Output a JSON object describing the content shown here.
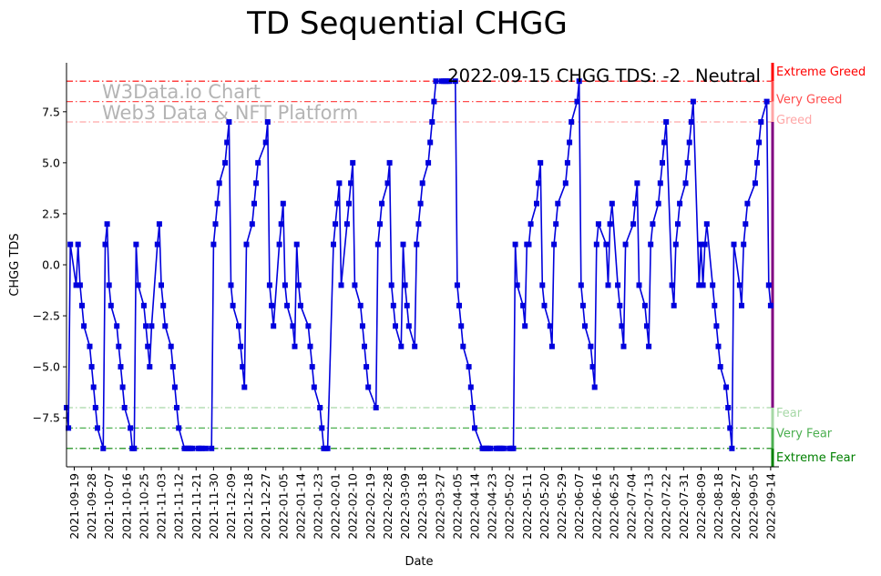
{
  "chart_data": {
    "type": "line",
    "title": "TD Sequential CHGG",
    "xlabel": "Date",
    "ylabel": "CHGG TDS",
    "ylim": [
      -9.9,
      9.9
    ],
    "yticks": [
      -7.5,
      -5.0,
      -2.5,
      0.0,
      2.5,
      5.0,
      7.5
    ],
    "ytick_labels": [
      "−7.5",
      "−5.0",
      "−2.5",
      "0.0",
      "2.5",
      "5.0",
      "7.5"
    ],
    "x_start": "2021-09-15",
    "x_end": "2022-09-15",
    "xtick_labels": [
      "2021-09-19",
      "2021-09-28",
      "2021-10-07",
      "2021-10-16",
      "2021-10-25",
      "2021-11-03",
      "2021-11-12",
      "2021-11-21",
      "2021-11-30",
      "2021-12-09",
      "2021-12-18",
      "2021-12-27",
      "2022-01-05",
      "2022-01-14",
      "2022-01-23",
      "2022-02-01",
      "2022-02-10",
      "2022-02-19",
      "2022-02-28",
      "2022-03-09",
      "2022-03-18",
      "2022-03-27",
      "2022-04-05",
      "2022-04-14",
      "2022-04-23",
      "2022-05-02",
      "2022-05-11",
      "2022-05-20",
      "2022-05-29",
      "2022-06-07",
      "2022-06-16",
      "2022-06-25",
      "2022-07-04",
      "2022-07-13",
      "2022-07-22",
      "2022-07-31",
      "2022-08-09",
      "2022-08-18",
      "2022-08-27",
      "2022-09-05",
      "2022-09-14"
    ],
    "series": [
      {
        "name": "CHGG TDS",
        "color": "#0000dd",
        "values": [
          [
            "2021-09-15",
            -7
          ],
          [
            "2021-09-16",
            -8
          ],
          [
            "2021-09-17",
            1
          ],
          [
            "2021-09-20",
            -1
          ],
          [
            "2021-09-21",
            1
          ],
          [
            "2021-09-22",
            -1
          ],
          [
            "2021-09-23",
            -2
          ],
          [
            "2021-09-24",
            -3
          ],
          [
            "2021-09-27",
            -4
          ],
          [
            "2021-09-28",
            -5
          ],
          [
            "2021-09-29",
            -6
          ],
          [
            "2021-09-30",
            -7
          ],
          [
            "2021-10-01",
            -8
          ],
          [
            "2021-10-04",
            -9
          ],
          [
            "2021-10-05",
            1
          ],
          [
            "2021-10-06",
            2
          ],
          [
            "2021-10-07",
            -1
          ],
          [
            "2021-10-08",
            -2
          ],
          [
            "2021-10-11",
            -3
          ],
          [
            "2021-10-12",
            -4
          ],
          [
            "2021-10-13",
            -5
          ],
          [
            "2021-10-14",
            -6
          ],
          [
            "2021-10-15",
            -7
          ],
          [
            "2021-10-18",
            -8
          ],
          [
            "2021-10-19",
            -9
          ],
          [
            "2021-10-20",
            -9
          ],
          [
            "2021-10-21",
            1
          ],
          [
            "2021-10-22",
            -1
          ],
          [
            "2021-10-25",
            -2
          ],
          [
            "2021-10-26",
            -3
          ],
          [
            "2021-10-27",
            -4
          ],
          [
            "2021-10-28",
            -5
          ],
          [
            "2021-10-29",
            -3
          ],
          [
            "2021-11-01",
            1
          ],
          [
            "2021-11-02",
            2
          ],
          [
            "2021-11-03",
            -1
          ],
          [
            "2021-11-04",
            -2
          ],
          [
            "2021-11-05",
            -3
          ],
          [
            "2021-11-08",
            -4
          ],
          [
            "2021-11-09",
            -5
          ],
          [
            "2021-11-10",
            -6
          ],
          [
            "2021-11-11",
            -7
          ],
          [
            "2021-11-12",
            -8
          ],
          [
            "2021-11-15",
            -9
          ],
          [
            "2021-11-16",
            -9
          ],
          [
            "2021-11-17",
            -9
          ],
          [
            "2021-11-18",
            -9
          ],
          [
            "2021-11-19",
            -9
          ],
          [
            "2021-11-22",
            -9
          ],
          [
            "2021-11-23",
            -9
          ],
          [
            "2021-11-24",
            -9
          ],
          [
            "2021-11-26",
            -9
          ],
          [
            "2021-11-29",
            -9
          ],
          [
            "2021-11-30",
            1
          ],
          [
            "2021-12-01",
            2
          ],
          [
            "2021-12-02",
            3
          ],
          [
            "2021-12-03",
            4
          ],
          [
            "2021-12-06",
            5
          ],
          [
            "2021-12-07",
            6
          ],
          [
            "2021-12-08",
            7
          ],
          [
            "2021-12-09",
            -1
          ],
          [
            "2021-12-10",
            -2
          ],
          [
            "2021-12-13",
            -3
          ],
          [
            "2021-12-14",
            -4
          ],
          [
            "2021-12-15",
            -5
          ],
          [
            "2021-12-16",
            -6
          ],
          [
            "2021-12-17",
            1
          ],
          [
            "2021-12-20",
            2
          ],
          [
            "2021-12-21",
            3
          ],
          [
            "2021-12-22",
            4
          ],
          [
            "2021-12-23",
            5
          ],
          [
            "2021-12-27",
            6
          ],
          [
            "2021-12-28",
            7
          ],
          [
            "2021-12-29",
            -1
          ],
          [
            "2021-12-30",
            -2
          ],
          [
            "2021-12-31",
            -3
          ],
          [
            "2022-01-03",
            1
          ],
          [
            "2022-01-04",
            2
          ],
          [
            "2022-01-05",
            3
          ],
          [
            "2022-01-06",
            -1
          ],
          [
            "2022-01-07",
            -2
          ],
          [
            "2022-01-10",
            -3
          ],
          [
            "2022-01-11",
            -4
          ],
          [
            "2022-01-12",
            1
          ],
          [
            "2022-01-13",
            -1
          ],
          [
            "2022-01-14",
            -2
          ],
          [
            "2022-01-18",
            -3
          ],
          [
            "2022-01-19",
            -4
          ],
          [
            "2022-01-20",
            -5
          ],
          [
            "2022-01-21",
            -6
          ],
          [
            "2022-01-24",
            -7
          ],
          [
            "2022-01-25",
            -8
          ],
          [
            "2022-01-26",
            -9
          ],
          [
            "2022-01-27",
            -9
          ],
          [
            "2022-01-28",
            -9
          ],
          [
            "2022-01-31",
            1
          ],
          [
            "2022-02-01",
            2
          ],
          [
            "2022-02-02",
            3
          ],
          [
            "2022-02-03",
            4
          ],
          [
            "2022-02-04",
            -1
          ],
          [
            "2022-02-07",
            2
          ],
          [
            "2022-02-08",
            3
          ],
          [
            "2022-02-09",
            4
          ],
          [
            "2022-02-10",
            5
          ],
          [
            "2022-02-11",
            -1
          ],
          [
            "2022-02-14",
            -2
          ],
          [
            "2022-02-15",
            -3
          ],
          [
            "2022-02-16",
            -4
          ],
          [
            "2022-02-17",
            -5
          ],
          [
            "2022-02-18",
            -6
          ],
          [
            "2022-02-22",
            -7
          ],
          [
            "2022-02-23",
            1
          ],
          [
            "2022-02-24",
            2
          ],
          [
            "2022-02-25",
            3
          ],
          [
            "2022-02-28",
            4
          ],
          [
            "2022-03-01",
            5
          ],
          [
            "2022-03-02",
            -1
          ],
          [
            "2022-03-03",
            -2
          ],
          [
            "2022-03-04",
            -3
          ],
          [
            "2022-03-07",
            -4
          ],
          [
            "2022-03-08",
            1
          ],
          [
            "2022-03-09",
            -1
          ],
          [
            "2022-03-10",
            -2
          ],
          [
            "2022-03-11",
            -3
          ],
          [
            "2022-03-14",
            -4
          ],
          [
            "2022-03-15",
            1
          ],
          [
            "2022-03-16",
            2
          ],
          [
            "2022-03-17",
            3
          ],
          [
            "2022-03-18",
            4
          ],
          [
            "2022-03-21",
            5
          ],
          [
            "2022-03-22",
            6
          ],
          [
            "2022-03-23",
            7
          ],
          [
            "2022-03-24",
            8
          ],
          [
            "2022-03-25",
            9
          ],
          [
            "2022-03-28",
            9
          ],
          [
            "2022-03-29",
            9
          ],
          [
            "2022-03-30",
            9
          ],
          [
            "2022-03-31",
            9
          ],
          [
            "2022-04-01",
            9
          ],
          [
            "2022-04-04",
            9
          ],
          [
            "2022-04-05",
            -1
          ],
          [
            "2022-04-06",
            -2
          ],
          [
            "2022-04-07",
            -3
          ],
          [
            "2022-04-08",
            -4
          ],
          [
            "2022-04-11",
            -5
          ],
          [
            "2022-04-12",
            -6
          ],
          [
            "2022-04-13",
            -7
          ],
          [
            "2022-04-14",
            -8
          ],
          [
            "2022-04-18",
            -9
          ],
          [
            "2022-04-19",
            -9
          ],
          [
            "2022-04-20",
            -9
          ],
          [
            "2022-04-21",
            -9
          ],
          [
            "2022-04-22",
            -9
          ],
          [
            "2022-04-25",
            -9
          ],
          [
            "2022-04-26",
            -9
          ],
          [
            "2022-04-27",
            -9
          ],
          [
            "2022-04-28",
            -9
          ],
          [
            "2022-04-29",
            -9
          ],
          [
            "2022-05-02",
            -9
          ],
          [
            "2022-05-03",
            -9
          ],
          [
            "2022-05-04",
            -9
          ],
          [
            "2022-05-05",
            1
          ],
          [
            "2022-05-06",
            -1
          ],
          [
            "2022-05-09",
            -2
          ],
          [
            "2022-05-10",
            -3
          ],
          [
            "2022-05-11",
            1
          ],
          [
            "2022-05-12",
            1
          ],
          [
            "2022-05-13",
            2
          ],
          [
            "2022-05-16",
            3
          ],
          [
            "2022-05-17",
            4
          ],
          [
            "2022-05-18",
            5
          ],
          [
            "2022-05-19",
            -1
          ],
          [
            "2022-05-20",
            -2
          ],
          [
            "2022-05-23",
            -3
          ],
          [
            "2022-05-24",
            -4
          ],
          [
            "2022-05-25",
            1
          ],
          [
            "2022-05-26",
            2
          ],
          [
            "2022-05-27",
            3
          ],
          [
            "2022-05-31",
            4
          ],
          [
            "2022-06-01",
            5
          ],
          [
            "2022-06-02",
            6
          ],
          [
            "2022-06-03",
            7
          ],
          [
            "2022-06-06",
            8
          ],
          [
            "2022-06-07",
            9
          ],
          [
            "2022-06-08",
            -1
          ],
          [
            "2022-06-09",
            -2
          ],
          [
            "2022-06-10",
            -3
          ],
          [
            "2022-06-13",
            -4
          ],
          [
            "2022-06-14",
            -5
          ],
          [
            "2022-06-15",
            -6
          ],
          [
            "2022-06-16",
            1
          ],
          [
            "2022-06-17",
            2
          ],
          [
            "2022-06-21",
            1
          ],
          [
            "2022-06-22",
            -1
          ],
          [
            "2022-06-23",
            2
          ],
          [
            "2022-06-24",
            3
          ],
          [
            "2022-06-27",
            -1
          ],
          [
            "2022-06-28",
            -2
          ],
          [
            "2022-06-29",
            -3
          ],
          [
            "2022-06-30",
            -4
          ],
          [
            "2022-07-01",
            1
          ],
          [
            "2022-07-05",
            2
          ],
          [
            "2022-07-06",
            3
          ],
          [
            "2022-07-07",
            4
          ],
          [
            "2022-07-08",
            -1
          ],
          [
            "2022-07-11",
            -2
          ],
          [
            "2022-07-12",
            -3
          ],
          [
            "2022-07-13",
            -4
          ],
          [
            "2022-07-14",
            1
          ],
          [
            "2022-07-15",
            2
          ],
          [
            "2022-07-18",
            3
          ],
          [
            "2022-07-19",
            4
          ],
          [
            "2022-07-20",
            5
          ],
          [
            "2022-07-21",
            6
          ],
          [
            "2022-07-22",
            7
          ],
          [
            "2022-07-25",
            -1
          ],
          [
            "2022-07-26",
            -2
          ],
          [
            "2022-07-27",
            1
          ],
          [
            "2022-07-28",
            2
          ],
          [
            "2022-07-29",
            3
          ],
          [
            "2022-08-01",
            4
          ],
          [
            "2022-08-02",
            5
          ],
          [
            "2022-08-03",
            6
          ],
          [
            "2022-08-04",
            7
          ],
          [
            "2022-08-05",
            8
          ],
          [
            "2022-08-08",
            -1
          ],
          [
            "2022-08-09",
            1
          ],
          [
            "2022-08-10",
            -1
          ],
          [
            "2022-08-11",
            1
          ],
          [
            "2022-08-12",
            2
          ],
          [
            "2022-08-15",
            -1
          ],
          [
            "2022-08-16",
            -2
          ],
          [
            "2022-08-17",
            -3
          ],
          [
            "2022-08-18",
            -4
          ],
          [
            "2022-08-19",
            -5
          ],
          [
            "2022-08-22",
            -6
          ],
          [
            "2022-08-23",
            -7
          ],
          [
            "2022-08-24",
            -8
          ],
          [
            "2022-08-25",
            -9
          ],
          [
            "2022-08-26",
            1
          ],
          [
            "2022-08-29",
            -1
          ],
          [
            "2022-08-30",
            -2
          ],
          [
            "2022-08-31",
            1
          ],
          [
            "2022-09-01",
            2
          ],
          [
            "2022-09-02",
            3
          ],
          [
            "2022-09-06",
            4
          ],
          [
            "2022-09-07",
            5
          ],
          [
            "2022-09-08",
            6
          ],
          [
            "2022-09-09",
            7
          ],
          [
            "2022-09-12",
            8
          ],
          [
            "2022-09-13",
            -1
          ],
          [
            "2022-09-14",
            -2
          ]
        ]
      }
    ],
    "reference_lines": [
      {
        "value": 9,
        "label": "Extreme Greed",
        "color": "#ff0000",
        "style": "dashdot"
      },
      {
        "value": 8,
        "label": "Very Greed",
        "color": "#ff4d4d",
        "style": "dashdot"
      },
      {
        "value": 7,
        "label": "Greed",
        "color": "#ffa6a6",
        "style": "dashdot"
      },
      {
        "value": -7,
        "label": "Fear",
        "color": "#a6d8a6",
        "style": "dashdot"
      },
      {
        "value": -8,
        "label": "Very Fear",
        "color": "#4caf50",
        "style": "dashdot"
      },
      {
        "value": -9,
        "label": "Extreme Fear",
        "color": "#008000",
        "style": "dashdot"
      }
    ],
    "annotation": "2022-09-15 CHGG TDS: -2",
    "sentiment_label": "Neutral",
    "sentiment_color": "#800080",
    "watermark": [
      "W3Data.io Chart",
      "Web3 Data & NFT Platform"
    ],
    "grid": false,
    "legend": "none"
  }
}
